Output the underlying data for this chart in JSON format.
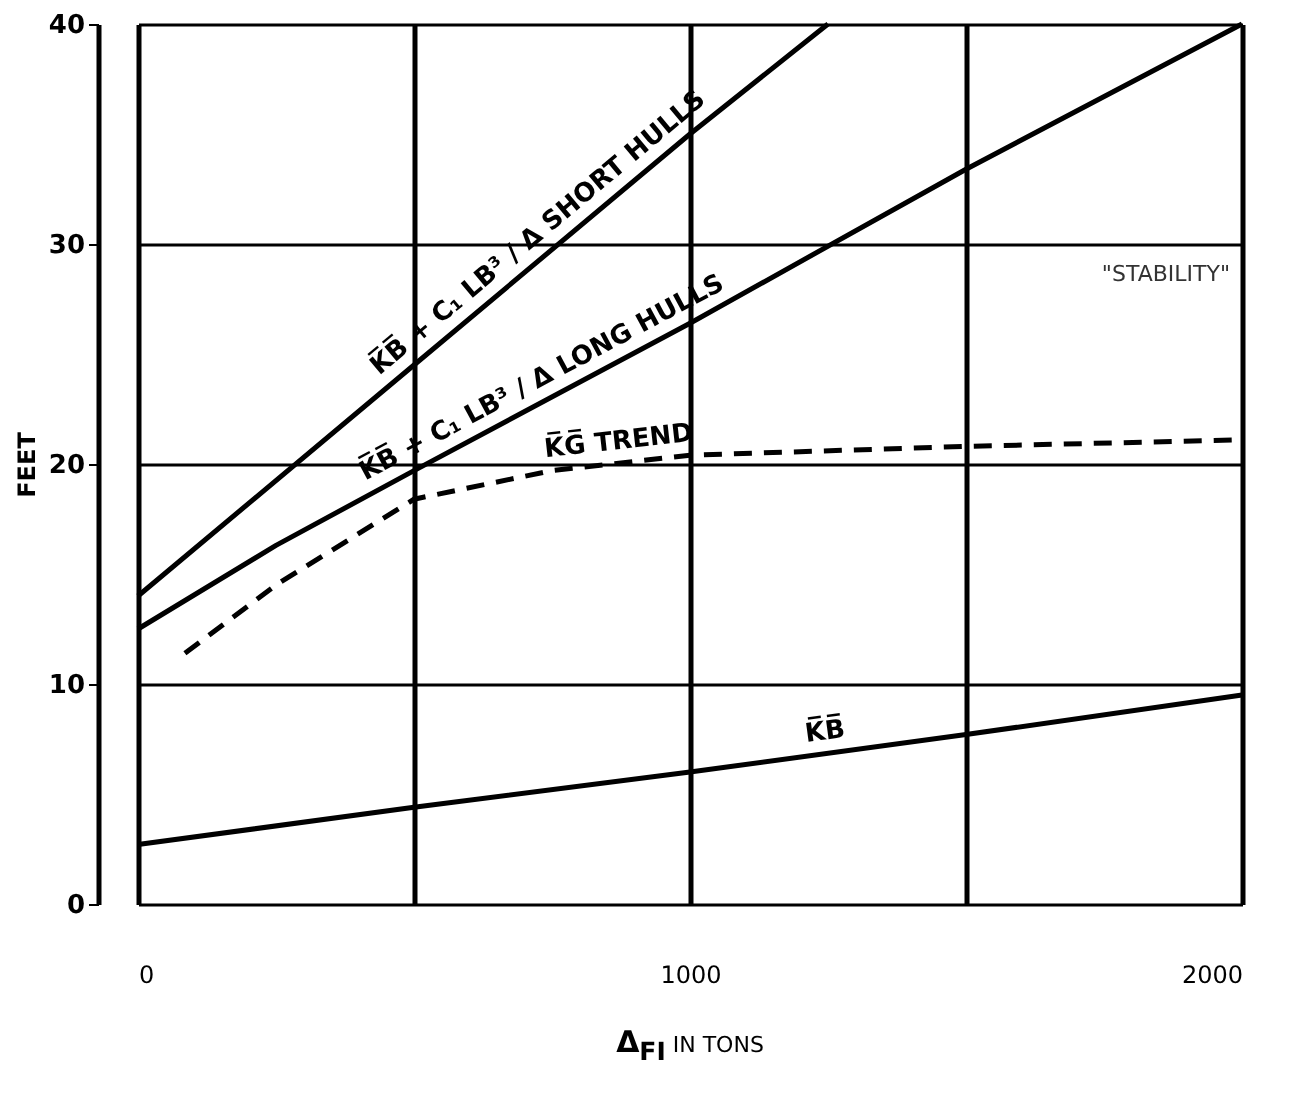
{
  "chart_data": {
    "type": "line",
    "ylabel": "FEET",
    "xlabel": "Δ$_{FI}$ IN TONS",
    "xlim": [
      0,
      2000
    ],
    "ylim": [
      0,
      40
    ],
    "xticks": [
      0,
      {
        "value": 500,
        "label": null
      },
      1000,
      {
        "value": 1500,
        "label": null
      },
      2000
    ],
    "yticks": [
      0,
      10,
      20,
      30,
      40
    ],
    "grid": true,
    "line_style": "solid",
    "series": [
      {
        "name": "K̅B̅ + C₁ LB³ / Δ SHORT HULLS",
        "color": "#000000",
        "x": [
          0,
          500,
          1000,
          1250
        ],
        "values": [
          14,
          24.5,
          35,
          40
        ]
      },
      {
        "name": "K̅B̅ + C₁ LB³ / Δ LONG HULLS",
        "color": "#000000",
        "x": [
          0,
          250,
          500,
          1000,
          1500,
          2000
        ],
        "values": [
          12.5,
          16.3,
          19.7,
          26.4,
          33.4,
          40
        ]
      },
      {
        "name": "K̅G̅ TREND",
        "color": "#000000",
        "line_style": "dashed",
        "x": [
          85,
          250,
          500,
          750,
          1000,
          1500,
          2000
        ],
        "values": [
          11.4,
          14.5,
          18.4,
          19.7,
          20.4,
          20.8,
          21.1
        ]
      },
      {
        "name": "K̅B̅",
        "color": "#000000",
        "x": [
          0,
          500,
          1000,
          1500,
          2000
        ],
        "values": [
          2.7,
          4.4,
          6.0,
          7.7,
          9.5
        ]
      }
    ],
    "annotations": [
      "\"STABILITY\""
    ]
  }
}
